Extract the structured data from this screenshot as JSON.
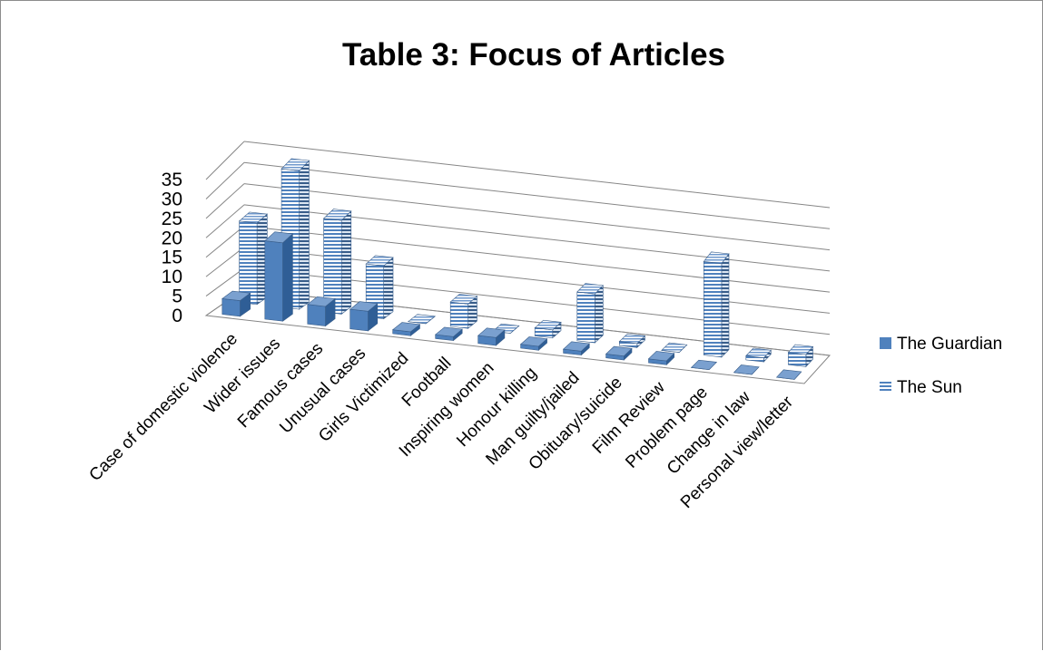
{
  "chart_data": {
    "type": "bar",
    "subtype": "3d-column",
    "title": "Table 3: Focus of Articles",
    "categories": [
      "Case of domestic violence",
      "Wider issues",
      "Famous cases",
      "Unusual cases",
      "Girls Victimized",
      "Football",
      "Inspiring women",
      "Honour killing",
      "Man guilty/jailed",
      "Obituary/suicide",
      "Film Review",
      "Problem page",
      "Change in law",
      "Personal view/letter"
    ],
    "series": [
      {
        "name": "The Guardian",
        "color": "#4f81bd",
        "pattern": "solid",
        "values": [
          4,
          20,
          5,
          5,
          1,
          1,
          2,
          1,
          1,
          1,
          1,
          0,
          0,
          0
        ]
      },
      {
        "name": "The Sun",
        "color": "#4f81bd",
        "pattern": "horizontal-stripes",
        "values": [
          20,
          34,
          23,
          13,
          0,
          6,
          0,
          2,
          12,
          1,
          0,
          23,
          1,
          3
        ]
      }
    ],
    "xlabel": "",
    "ylabel": "",
    "ylim": [
      0,
      35
    ],
    "yticks": [
      "0",
      "5",
      "10",
      "15",
      "20",
      "25",
      "30",
      "35"
    ],
    "grid": true,
    "legend_position": "right"
  }
}
